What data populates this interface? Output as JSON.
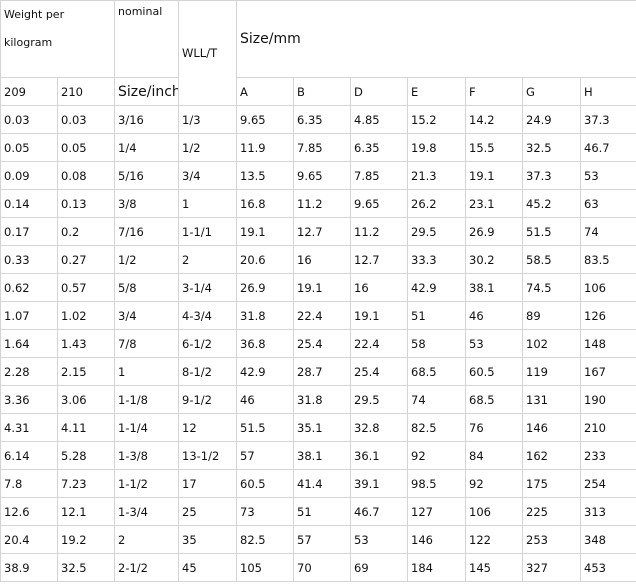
{
  "header": {
    "weight": "Weight per kilogram",
    "nominal": "nominal",
    "wll": "WLL/T",
    "size_mm": "Size/mm",
    "columns": [
      "209",
      "210",
      "Size/inch",
      "A",
      "B",
      "D",
      "E",
      "F",
      "G",
      "H"
    ]
  },
  "table": {
    "rows": [
      [
        "0.03",
        "0.03",
        "3/16",
        "1/3",
        "9.65",
        "6.35",
        "4.85",
        "15.2",
        "14.2",
        "24.9",
        "37.3"
      ],
      [
        "0.05",
        "0.05",
        "1/4",
        "1/2",
        "11.9",
        "7.85",
        "6.35",
        "19.8",
        "15.5",
        "32.5",
        "46.7"
      ],
      [
        "0.09",
        "0.08",
        "5/16",
        "3/4",
        "13.5",
        "9.65",
        "7.85",
        "21.3",
        "19.1",
        "37.3",
        "53"
      ],
      [
        "0.14",
        "0.13",
        "3/8",
        "1",
        "16.8",
        "11.2",
        "9.65",
        "26.2",
        "23.1",
        "45.2",
        "63"
      ],
      [
        "0.17",
        "0.2",
        "7/16",
        "1-1/1",
        "19.1",
        "12.7",
        "11.2",
        "29.5",
        "26.9",
        "51.5",
        "74"
      ],
      [
        "0.33",
        "0.27",
        "1/2",
        "2",
        "20.6",
        "16",
        "12.7",
        "33.3",
        "30.2",
        "58.5",
        "83.5"
      ],
      [
        "0.62",
        "0.57",
        "5/8",
        "3-1/4",
        "26.9",
        "19.1",
        "16",
        "42.9",
        "38.1",
        "74.5",
        "106"
      ],
      [
        "1.07",
        "1.02",
        "3/4",
        "4-3/4",
        "31.8",
        "22.4",
        "19.1",
        "51",
        "46",
        "89",
        "126"
      ],
      [
        "1.64",
        "1.43",
        "7/8",
        "6-1/2",
        "36.8",
        "25.4",
        "22.4",
        "58",
        "53",
        "102",
        "148"
      ],
      [
        "2.28",
        "2.15",
        "1",
        "8-1/2",
        "42.9",
        "28.7",
        "25.4",
        "68.5",
        "60.5",
        "119",
        "167"
      ],
      [
        "3.36",
        "3.06",
        "1-1/8",
        "9-1/2",
        "46",
        "31.8",
        "29.5",
        "74",
        "68.5",
        "131",
        "190"
      ],
      [
        "4.31",
        "4.11",
        "1-1/4",
        "12",
        "51.5",
        "35.1",
        "32.8",
        "82.5",
        "76",
        "146",
        "210"
      ],
      [
        "6.14",
        "5.28",
        "1-3/8",
        "13-1/2",
        "57",
        "38.1",
        "36.1",
        "92",
        "84",
        "162",
        "233"
      ],
      [
        "7.8",
        "7.23",
        "1-1/2",
        "17",
        "60.5",
        "41.4",
        "39.1",
        "98.5",
        "92",
        "175",
        "254"
      ],
      [
        "12.6",
        "12.1",
        "1-3/4",
        "25",
        "73",
        "51",
        "46.7",
        "127",
        "106",
        "225",
        "313"
      ],
      [
        "20.4",
        "19.2",
        "2",
        "35",
        "82.5",
        "57",
        "53",
        "146",
        "122",
        "253",
        "348"
      ],
      [
        "38.9",
        "32.5",
        "2-1/2",
        "45",
        "105",
        "70",
        "69",
        "184",
        "145",
        "327",
        "453"
      ]
    ]
  }
}
